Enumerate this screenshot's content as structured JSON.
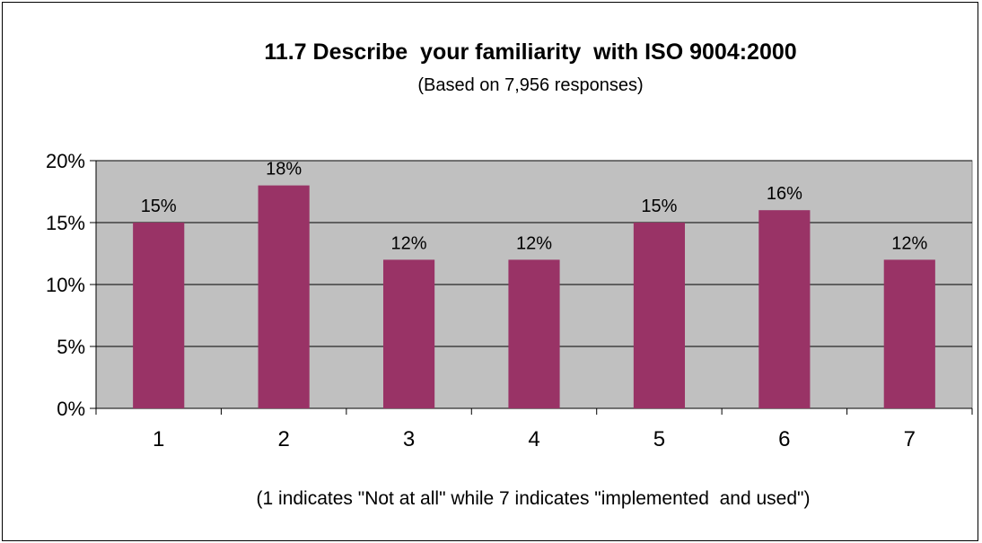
{
  "chart_data": {
    "type": "bar",
    "title": "11.7 Describe  your familiarity  with ISO 9004:2000",
    "subtitle": "(Based on 7,956 responses)",
    "xlabel": "(1 indicates \"Not at all\" while 7 indicates \"implemented  and used\")",
    "ylabel": "",
    "categories": [
      "1",
      "2",
      "3",
      "4",
      "5",
      "6",
      "7"
    ],
    "values": [
      15,
      18,
      12,
      12,
      15,
      16,
      12
    ],
    "data_labels": [
      "15%",
      "18%",
      "12%",
      "12%",
      "15%",
      "16%",
      "12%"
    ],
    "ylim": [
      0,
      20
    ],
    "yticks": [
      0,
      5,
      10,
      15,
      20
    ],
    "ytick_labels": [
      "0%",
      "5%",
      "10%",
      "15%",
      "20%"
    ],
    "grid": true,
    "legend": "none",
    "bar_color": "#993366",
    "plot_background": "#c0c0c0"
  }
}
